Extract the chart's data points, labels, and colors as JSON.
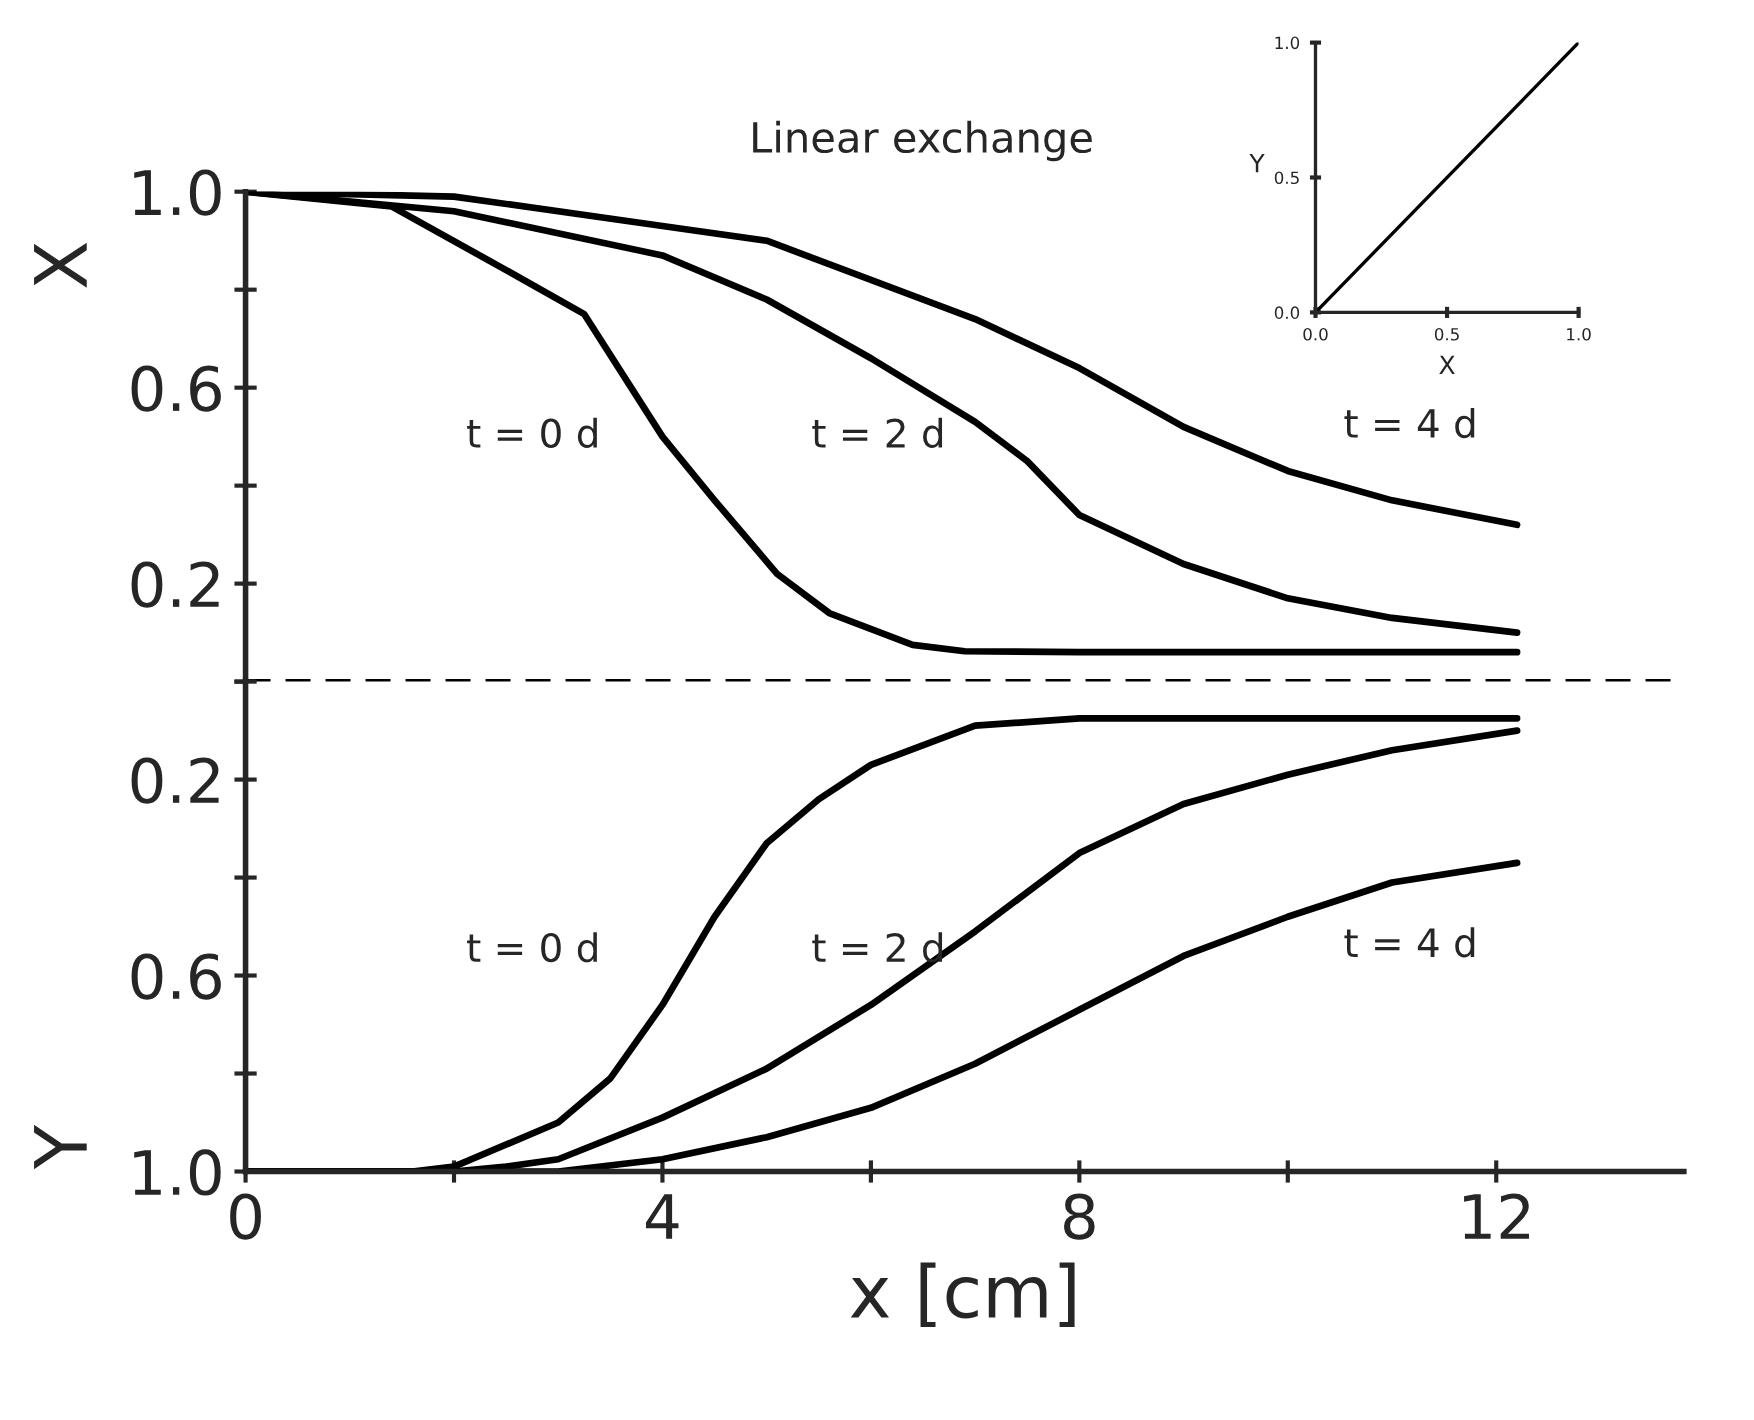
{
  "chart_data": [
    {
      "type": "line",
      "title": "Linear exchange",
      "ylabel": "X",
      "xlim": [
        0,
        13.8
      ],
      "ylim": [
        0,
        1.0
      ],
      "tick_labels": "y",
      "yticks": [
        {
          "value": 0,
          "label": null
        },
        0.2,
        {
          "value": 0.4,
          "label": null
        },
        0.6,
        {
          "value": 0.8,
          "label": null
        },
        {
          "value": 1.0,
          "label": "1.0"
        }
      ],
      "grid": false,
      "marker": "none",
      "line_style": "solid",
      "ref_lines": [
        {
          "axis": "y",
          "value": 0,
          "line_style": "dashed",
          "color": "#000000"
        }
      ],
      "annotations": [
        "t = 0 d",
        "t = 2 d",
        "t = 4 d"
      ],
      "series": [
        {
          "color": "#000000",
          "x": [
            0,
            1.4,
            2.5,
            3.25,
            4,
            4.5,
            5.1,
            5.6,
            6.4,
            6.9,
            8,
            10,
            12.2
          ],
          "values": [
            1.0,
            0.97,
            0.84,
            0.75,
            0.5,
            0.37,
            0.22,
            0.14,
            0.075,
            0.062,
            0.06,
            0.06,
            0.06
          ]
        },
        {
          "color": "#000000",
          "x": [
            0,
            2,
            4,
            5,
            6,
            7,
            7.5,
            8,
            9,
            10,
            11,
            12.2
          ],
          "values": [
            1.0,
            0.96,
            0.87,
            0.78,
            0.66,
            0.53,
            0.45,
            0.34,
            0.24,
            0.17,
            0.13,
            0.1
          ]
        },
        {
          "color": "#000000",
          "x": [
            0,
            2,
            4,
            5,
            6,
            7,
            8,
            9,
            10,
            11,
            12.2
          ],
          "values": [
            1.0,
            0.99,
            0.93,
            0.9,
            0.82,
            0.74,
            0.64,
            0.52,
            0.43,
            0.37,
            0.32
          ]
        }
      ]
    },
    {
      "type": "line",
      "ylabel": "Y",
      "xlabel": "x [cm]",
      "xlim": [
        0,
        13.8
      ],
      "ylim": [
        1.0,
        0
      ],
      "xticks": [
        0,
        {
          "value": 2,
          "label": null
        },
        4,
        {
          "value": 6,
          "label": null
        },
        8,
        {
          "value": 10,
          "label": null
        },
        12
      ],
      "yticks": [
        {
          "value": 0,
          "label": null
        },
        0.2,
        {
          "value": 0.4,
          "label": null
        },
        0.6,
        {
          "value": 0.8,
          "label": null
        },
        {
          "value": 1.0,
          "label": "1.0"
        }
      ],
      "grid": false,
      "marker": "none",
      "line_style": "solid",
      "annotations": [
        "t = 0 d",
        "t = 2 d",
        "t = 4 d"
      ],
      "series": [
        {
          "color": "#000000",
          "x": [
            0,
            1.6,
            2,
            3,
            3.5,
            4,
            4.5,
            5,
            5.5,
            6,
            7,
            8,
            10,
            12.2
          ],
          "values": [
            1.0,
            1.0,
            0.99,
            0.9,
            0.81,
            0.66,
            0.48,
            0.33,
            0.24,
            0.17,
            0.09,
            0.075,
            0.075,
            0.075
          ]
        },
        {
          "color": "#000000",
          "x": [
            0,
            2,
            2.5,
            3,
            4,
            5,
            6,
            7,
            8,
            9,
            10,
            11,
            12.2
          ],
          "values": [
            1.0,
            1.0,
            0.99,
            0.975,
            0.89,
            0.79,
            0.66,
            0.51,
            0.35,
            0.25,
            0.19,
            0.14,
            0.1
          ]
        },
        {
          "color": "#000000",
          "x": [
            0,
            3,
            4,
            5,
            6,
            7,
            8,
            9,
            10,
            11,
            12.2
          ],
          "values": [
            1.0,
            1.0,
            0.975,
            0.93,
            0.87,
            0.78,
            0.67,
            0.56,
            0.48,
            0.41,
            0.37
          ]
        }
      ]
    },
    {
      "type": "line",
      "xlabel": "X",
      "ylabel": "Y",
      "xlim": [
        0,
        1.0
      ],
      "ylim": [
        0,
        1.0
      ],
      "xticks": [
        {
          "value": 0,
          "label": "0.0"
        },
        0.5,
        {
          "value": 1.0,
          "label": "1.0"
        }
      ],
      "yticks": [
        {
          "value": 0,
          "label": "0.0"
        },
        0.5,
        {
          "value": 1.0,
          "label": "1.0"
        }
      ],
      "grid": false,
      "marker": "none",
      "line_style": "solid",
      "series": [
        {
          "color": "#000000",
          "x": [
            0,
            1.0
          ],
          "values": [
            0,
            1.0
          ]
        }
      ]
    }
  ]
}
